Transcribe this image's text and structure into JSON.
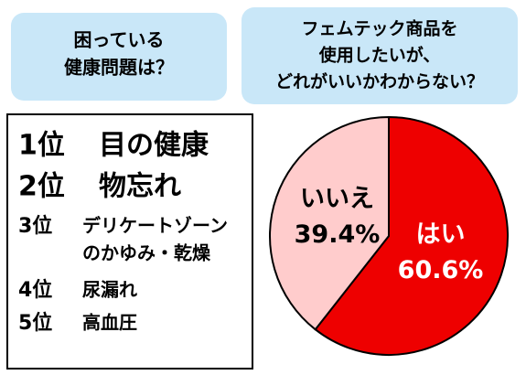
{
  "left_panel": {
    "title_lines": [
      "困っている",
      "健康問題は？"
    ]
  },
  "ranking": [
    {
      "rank": "1位",
      "item_lines": [
        "目の健康"
      ]
    },
    {
      "rank": "2位",
      "item_lines": [
        "物忘れ"
      ]
    },
    {
      "rank": "3位",
      "item_lines": [
        "デリケートゾーン",
        "のかゆみ・乾燥"
      ]
    },
    {
      "rank": "4位",
      "item_lines": [
        "尿漏れ"
      ]
    },
    {
      "rank": "5位",
      "item_lines": [
        "高血圧"
      ]
    }
  ],
  "chart_data": {
    "type": "pie",
    "title_lines": [
      "フェムテック商品を",
      "使用したいが、",
      "どれがいいかわからない？"
    ],
    "categories": [
      "はい",
      "いいえ"
    ],
    "values": [
      60.6,
      39.4
    ],
    "value_labels": [
      "60.6%",
      "39.4%"
    ],
    "colors": [
      "#ee0000",
      "#ffcccc"
    ]
  }
}
